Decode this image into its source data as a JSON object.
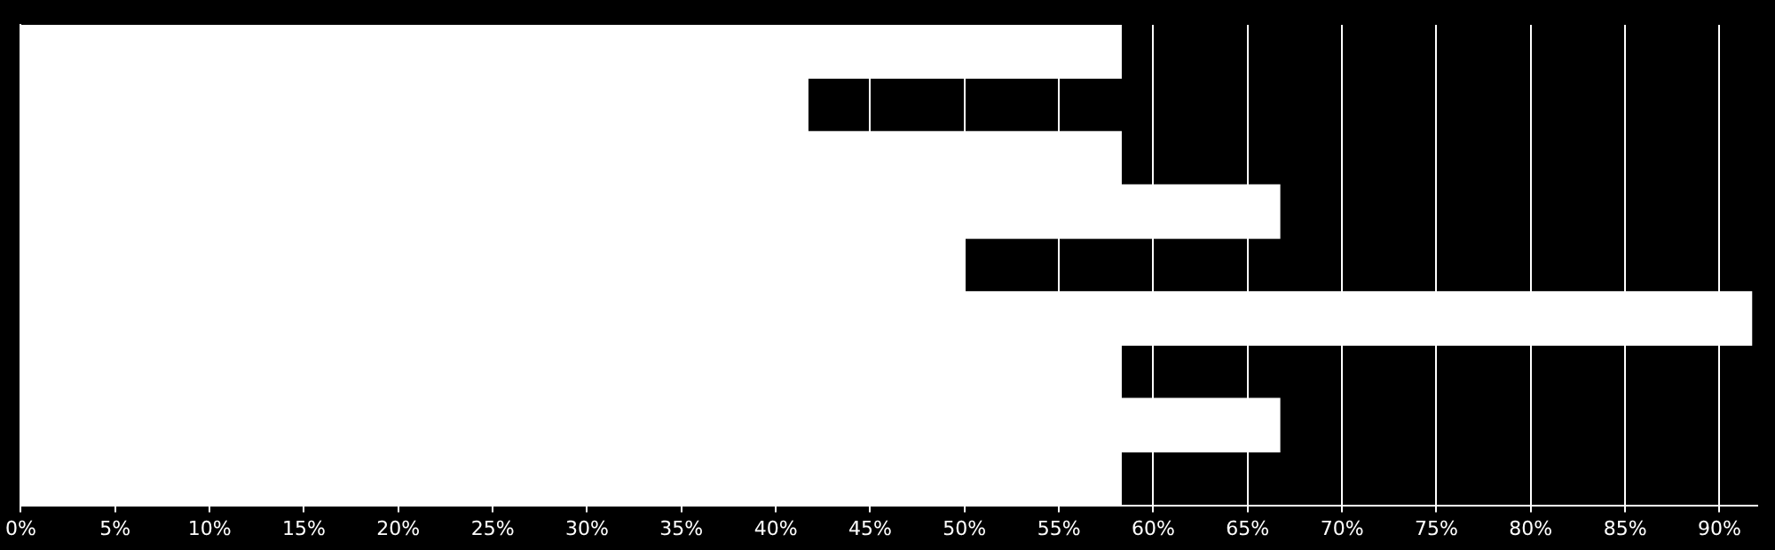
{
  "chart_data": {
    "type": "bar",
    "orientation": "horizontal",
    "relative": false,
    "categories": [
      null,
      null,
      null,
      null,
      null,
      null,
      null,
      null,
      null
    ],
    "values": [
      58.3,
      41.7,
      58.3,
      66.7,
      50,
      91.7,
      58.3,
      66.7,
      58.3
    ],
    "color": "#ffffff",
    "xlim": [
      0,
      92
    ],
    "xticks": [
      {
        "value": 0,
        "label": "0%"
      },
      {
        "value": 5,
        "label": "5%"
      },
      {
        "value": 10,
        "label": "10%"
      },
      {
        "value": 15,
        "label": "15%"
      },
      {
        "value": 20,
        "label": "20%"
      },
      {
        "value": 25,
        "label": "25%"
      },
      {
        "value": 30,
        "label": "30%"
      },
      {
        "value": 35,
        "label": "35%"
      },
      {
        "value": 40,
        "label": "40%"
      },
      {
        "value": 45,
        "label": "45%"
      },
      {
        "value": 50,
        "label": "50%"
      },
      {
        "value": 55,
        "label": "55%"
      },
      {
        "value": 60,
        "label": "60%"
      },
      {
        "value": 65,
        "label": "65%"
      },
      {
        "value": 70,
        "label": "70%"
      },
      {
        "value": 75,
        "label": "75%"
      },
      {
        "value": 80,
        "label": "80%"
      },
      {
        "value": 85,
        "label": "85%"
      },
      {
        "value": 90,
        "label": "90%"
      }
    ],
    "grid": "x",
    "legend": false
  }
}
